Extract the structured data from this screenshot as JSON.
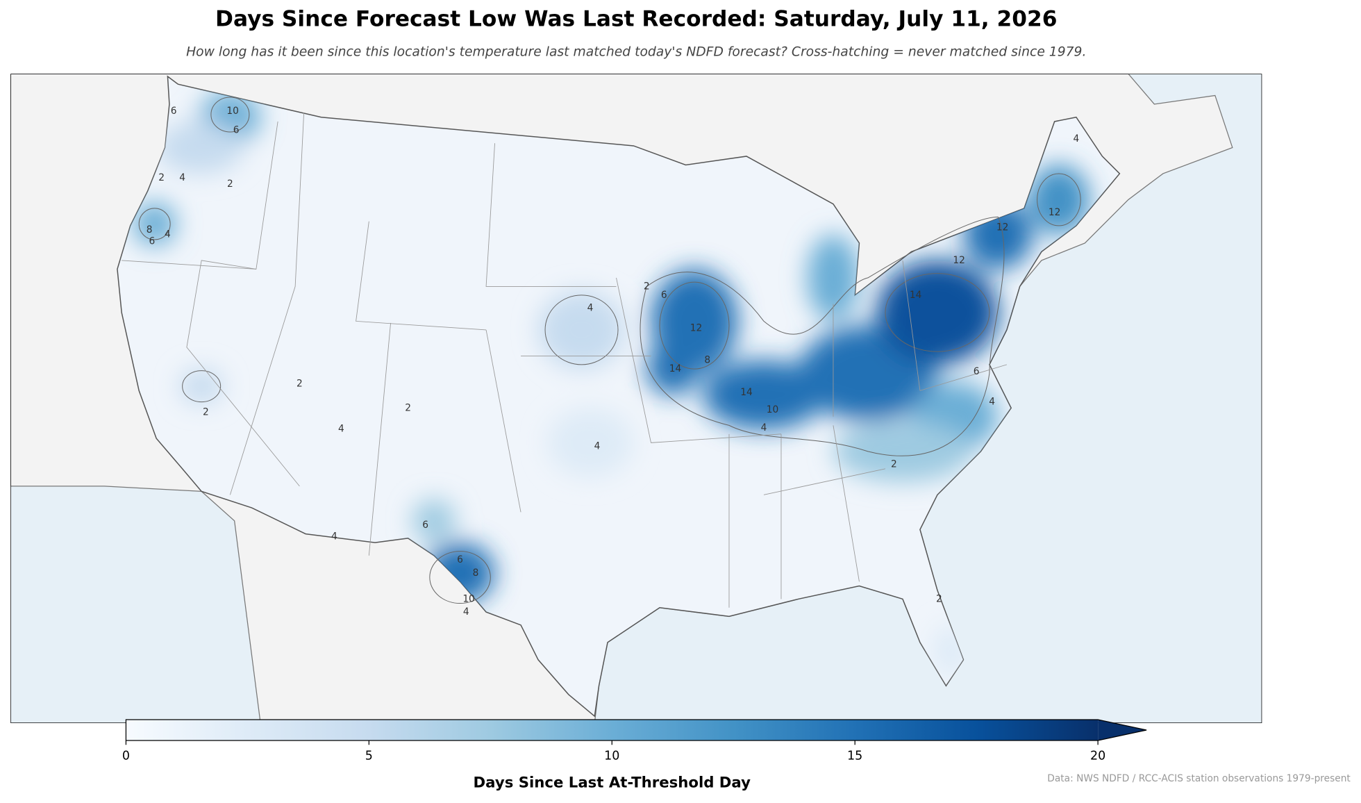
{
  "title": "Days Since Forecast Low Was Last Recorded: Saturday, July 11, 2026",
  "subtitle": "How long has it been since this location's temperature last matched today's NDFD forecast? Cross-hatching = never matched since 1979.",
  "colorbar": {
    "label": "Days Since Last At-Threshold Day",
    "lim": [
      0,
      20
    ],
    "ticks": [
      0,
      5,
      10,
      15,
      20
    ],
    "colors": [
      "#f7fbff",
      "#deebf7",
      "#c6dbef",
      "#9ecae1",
      "#6baed6",
      "#4292c6",
      "#2171b5",
      "#08519c",
      "#08306b"
    ],
    "extend": "max"
  },
  "contour_labels": [
    10,
    6,
    6,
    2,
    4,
    2,
    8,
    4,
    6,
    2,
    6,
    4,
    12,
    8,
    14,
    14,
    10,
    4,
    2,
    12,
    14,
    12,
    12,
    4,
    2,
    2,
    4,
    4,
    6,
    6,
    8,
    10,
    4,
    2,
    4,
    6,
    4,
    2
  ],
  "source": "Data: NWS NDFD / RCC-ACIS station observations 1979-present"
}
